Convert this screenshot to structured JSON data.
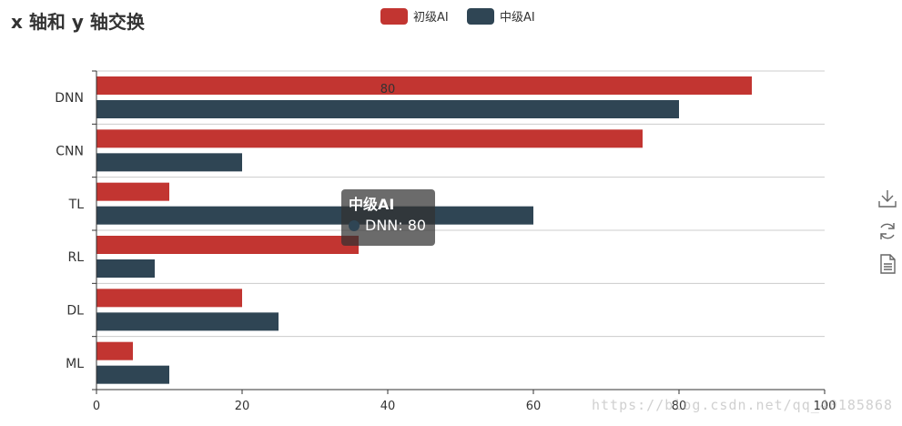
{
  "title": "x 轴和 y 轴交换",
  "legend": [
    {
      "name": "初级AI",
      "color": "#c23531"
    },
    {
      "name": "中级AI",
      "color": "#2f4554"
    }
  ],
  "chart_data": {
    "type": "bar",
    "orientation": "horizontal",
    "title": "x 轴和 y 轴交换",
    "categories": [
      "ML",
      "DL",
      "RL",
      "TL",
      "CNN",
      "DNN"
    ],
    "series": [
      {
        "name": "初级AI",
        "color": "#c23531",
        "values": [
          5,
          20,
          36,
          10,
          75,
          90
        ]
      },
      {
        "name": "中级AI",
        "color": "#2f4554",
        "values": [
          10,
          25,
          8,
          60,
          20,
          80
        ]
      }
    ],
    "xlim": [
      0,
      100
    ],
    "x_ticks": [
      0,
      20,
      40,
      60,
      80,
      100
    ],
    "xlabel": "",
    "ylabel": "",
    "grid": true,
    "legend_position": "top-center",
    "data_label": {
      "series": "中级AI",
      "category": "DNN",
      "text": "80"
    }
  },
  "tooltip": {
    "title": "中级AI",
    "text": "DNN: 80",
    "color": "#2f4554"
  },
  "toolbox": [
    "download-icon",
    "refresh-icon",
    "data-view-icon"
  ],
  "watermark": "https://blog.csdn.net/qq_40185868"
}
